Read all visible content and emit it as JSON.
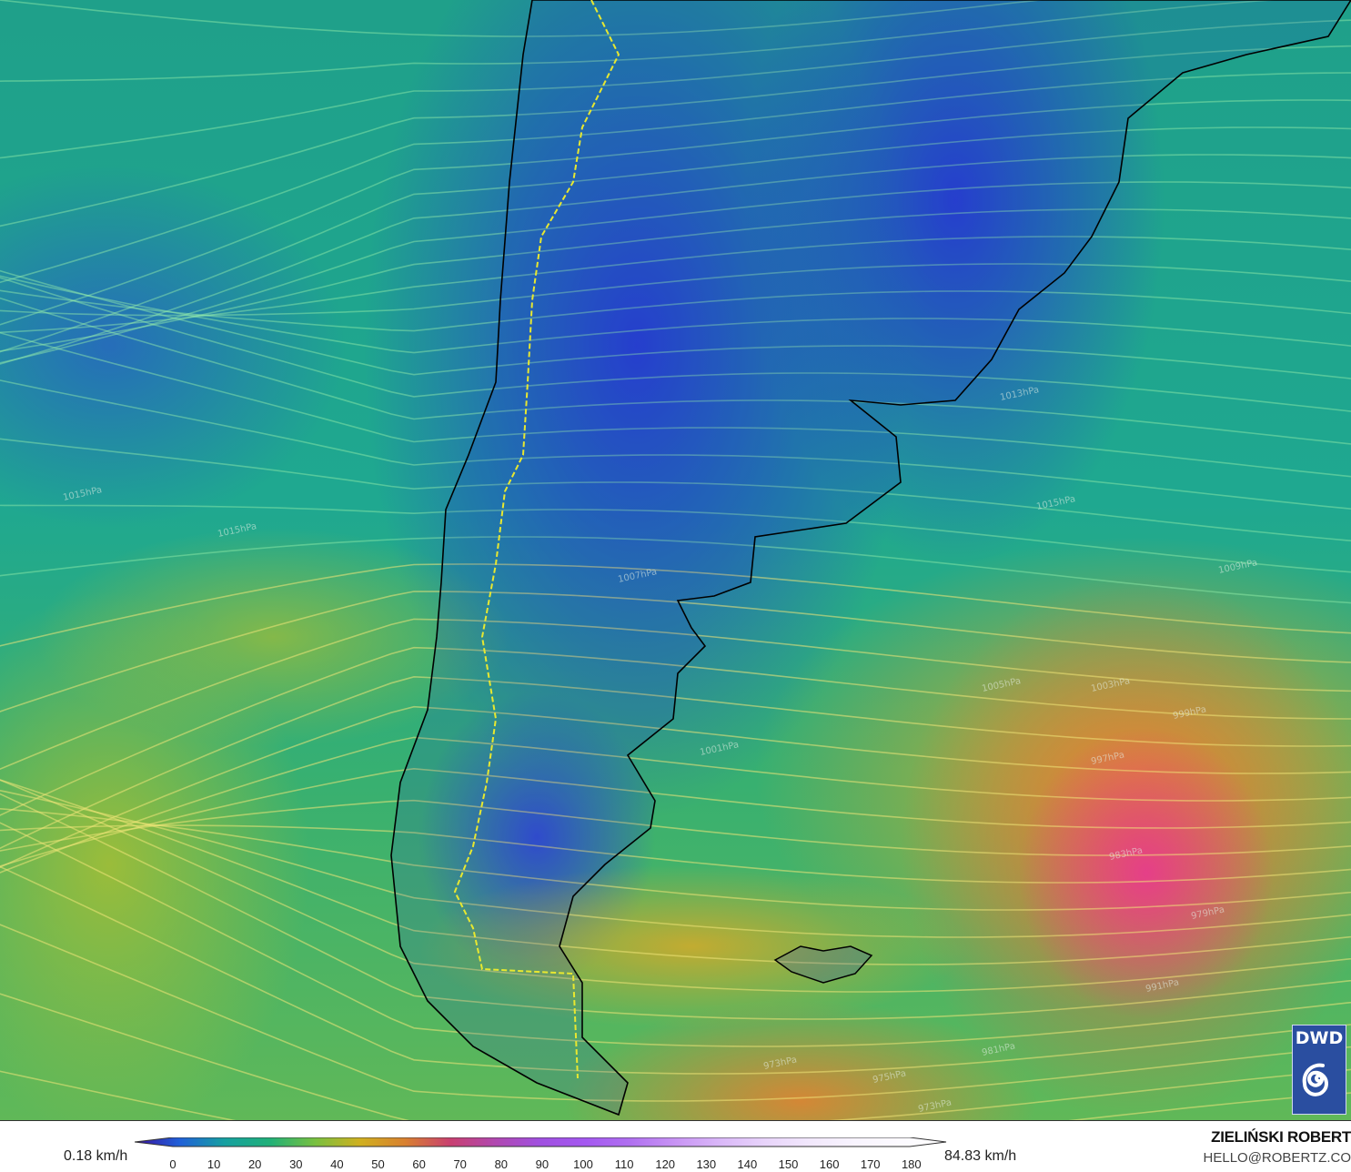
{
  "map": {
    "variable": "wind speed",
    "pressure_labels": [
      "1015hPa",
      "1015hPa",
      "1013hPa",
      "1015hPa",
      "1007hPa",
      "1009hPa",
      "1005hPa",
      "1003hPa",
      "999hPa",
      "1001hPa",
      "997hPa",
      "983hPa",
      "979hPa",
      "973hPa",
      "981hPa",
      "975hPa",
      "973hPa",
      "991hPa"
    ]
  },
  "logo": {
    "text": "DWD",
    "icon": "spiral-icon",
    "bg_color": "#2a4ea0"
  },
  "legend": {
    "min_label": "0.18 km/h",
    "max_label": "84.83 km/h",
    "ticks": [
      "0",
      "10",
      "20",
      "30",
      "40",
      "50",
      "60",
      "70",
      "80",
      "90",
      "100",
      "110",
      "120",
      "130",
      "140",
      "150",
      "160",
      "170",
      "180"
    ],
    "colors": [
      "#3a10a0",
      "#2060d8",
      "#16a0a0",
      "#20b078",
      "#78c040",
      "#d0b020",
      "#d88030",
      "#c84070",
      "#b048b0",
      "#a050e0",
      "#a458f0",
      "#b070f0",
      "#c894f4",
      "#dab8f8",
      "#e8d4fa",
      "#f2e8fc",
      "#f8f4fe",
      "#fcfaff",
      "#ffffff"
    ]
  },
  "credits": {
    "author": "ZIELIŃSKI ROBERT",
    "email": "HELLO@ROBERTZ.CO"
  }
}
